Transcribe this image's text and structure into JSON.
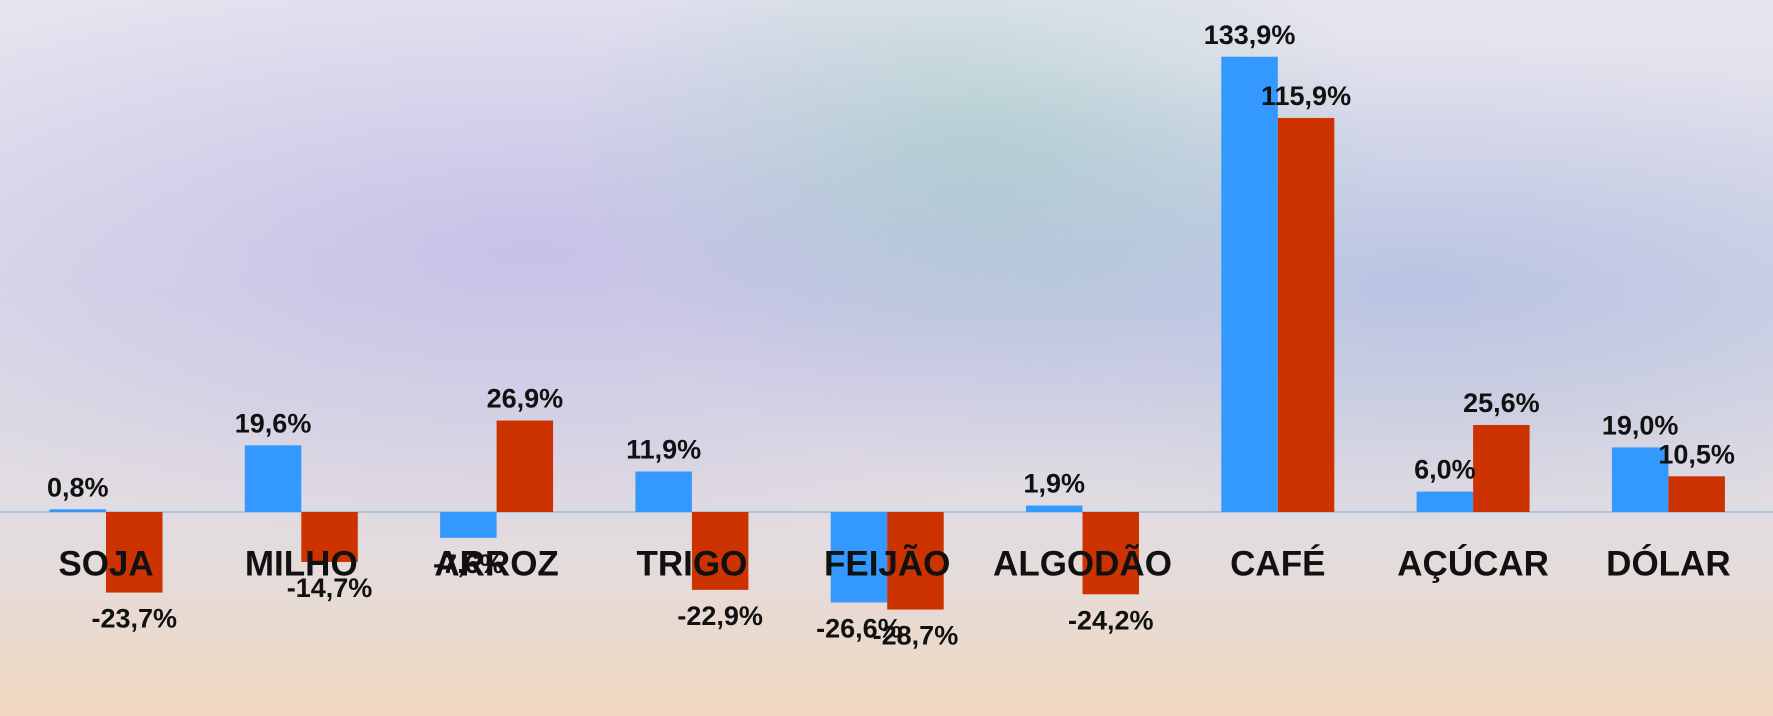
{
  "chart_data": {
    "type": "bar",
    "categories": [
      "SOJA",
      "MILHO",
      "ARROZ",
      "TRIGO",
      "FEIJÃO",
      "ALGODÃO",
      "CAFÉ",
      "AÇÚCAR",
      "DÓLAR"
    ],
    "series": [
      {
        "color": "#3399ff",
        "values": [
          0.8,
          19.6,
          -7.6,
          11.9,
          -26.6,
          1.9,
          133.9,
          6.0,
          19.0
        ],
        "value_labels": [
          "0,8%",
          "19,6%",
          "-7,6%",
          "11,9%",
          "-26,6%",
          "1,9%",
          "133,9%",
          "6,0%",
          "19,0%"
        ]
      },
      {
        "color": "#cc3300",
        "values": [
          -23.7,
          -14.7,
          26.9,
          -22.9,
          -28.7,
          -24.2,
          115.9,
          25.6,
          10.5
        ],
        "value_labels": [
          "-23,7%",
          "-14,7%",
          "26,9%",
          "-22,9%",
          "-28,7%",
          "-24,2%",
          "115,9%",
          "25,6%",
          "10,5%"
        ]
      }
    ],
    "ylim": [
      -40,
      140
    ]
  }
}
